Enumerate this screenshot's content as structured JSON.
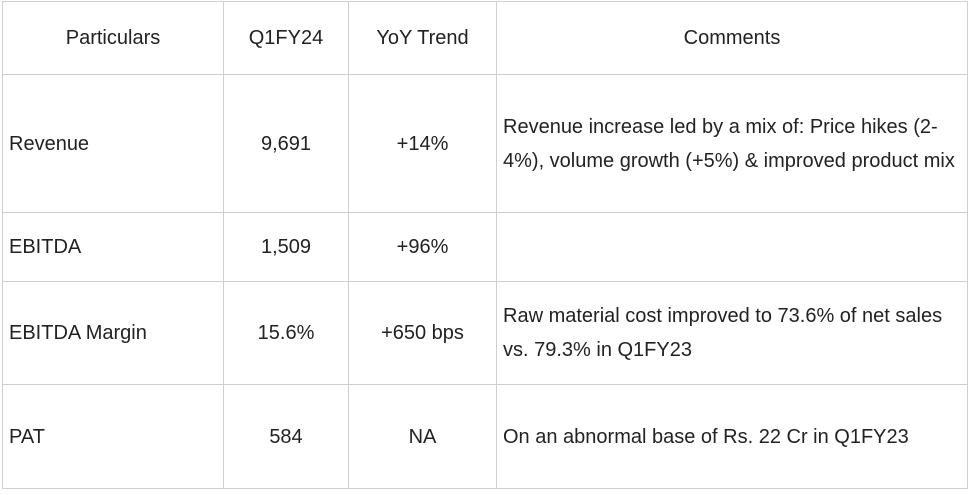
{
  "table": {
    "headers": [
      "Particulars",
      "Q1FY24",
      "YoY Trend",
      "Comments"
    ],
    "rows": [
      {
        "particular": "Revenue",
        "q1fy24": "9,691",
        "yoy": "+14%",
        "comment": "Revenue increase led by a mix of: Price hikes (2-4%), volume growth (+5%) & improved product mix"
      },
      {
        "particular": "EBITDA",
        "q1fy24": "1,509",
        "yoy": "+96%",
        "comment": ""
      },
      {
        "particular": "EBITDA Margin",
        "q1fy24": "15.6%",
        "yoy": "+650 bps",
        "comment": "Raw material cost improved to 73.6% of net sales vs. 79.3% in Q1FY23"
      },
      {
        "particular": "PAT",
        "q1fy24": "584",
        "yoy": "NA",
        "comment": "On an abnormal base of Rs. 22 Cr in Q1FY23"
      }
    ]
  }
}
